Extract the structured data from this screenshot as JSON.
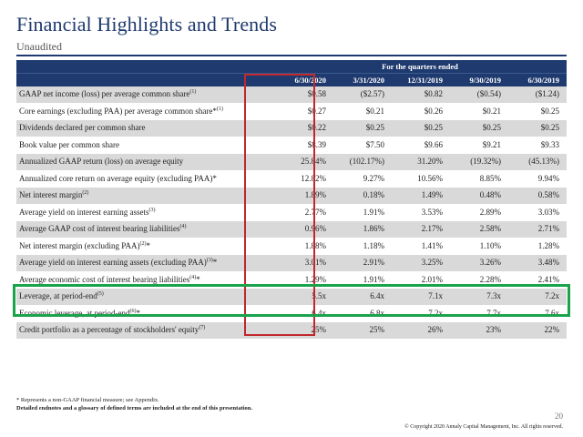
{
  "header": {
    "title": "Financial Highlights and Trends",
    "subtitle": "Unaudited"
  },
  "table": {
    "period_caption": "For the quarters ended",
    "columns": [
      "6/30/2020",
      "3/31/2020",
      "12/31/2019",
      "9/30/2019",
      "6/30/2019"
    ],
    "rows": [
      {
        "label": "GAAP net income (loss) per average common share",
        "note": "(1)",
        "values": [
          "$0.58",
          "($2.57)",
          "$0.82",
          "($0.54)",
          "($1.24)"
        ]
      },
      {
        "label": "Core earnings  (excluding PAA) per average common share*",
        "note": "(1)",
        "values": [
          "$0.27",
          "$0.21",
          "$0.26",
          "$0.21",
          "$0.25"
        ]
      },
      {
        "label": "Dividends declared per common share",
        "note": "",
        "values": [
          "$0.22",
          "$0.25",
          "$0.25",
          "$0.25",
          "$0.25"
        ]
      },
      {
        "label": "Book value per common share",
        "note": "",
        "values": [
          "$8.39",
          "$7.50",
          "$9.66",
          "$9.21",
          "$9.33"
        ]
      },
      {
        "label": "Annualized GAAP return (loss) on average equity",
        "note": "",
        "values": [
          "25.84%",
          "(102.17%)",
          "31.20%",
          "(19.32%)",
          "(45.13%)"
        ]
      },
      {
        "label": "Annualized core return on average equity (excluding PAA)*",
        "note": "",
        "values": [
          "12.82%",
          "9.27%",
          "10.56%",
          "8.85%",
          "9.94%"
        ]
      },
      {
        "label": "Net interest margin",
        "note": "(2)",
        "values": [
          "1.89%",
          "0.18%",
          "1.49%",
          "0.48%",
          "0.58%"
        ]
      },
      {
        "label": "Average yield on interest earning assets",
        "note": "(3)",
        "values": [
          "2.77%",
          "1.91%",
          "3.53%",
          "2.89%",
          "3.03%"
        ]
      },
      {
        "label": "Average GAAP cost of interest bearing liabilities",
        "note": "(4)",
        "values": [
          "0.96%",
          "1.86%",
          "2.17%",
          "2.58%",
          "2.71%"
        ]
      },
      {
        "label": "Net interest margin (excluding PAA)",
        "note": "(2)",
        "suffix": "*",
        "values": [
          "1.88%",
          "1.18%",
          "1.41%",
          "1.10%",
          "1.28%"
        ]
      },
      {
        "label": "Average yield on interest earning assets (excluding PAA)",
        "note": "(3)",
        "suffix": "*",
        "values": [
          "3.01%",
          "2.91%",
          "3.25%",
          "3.26%",
          "3.48%"
        ]
      },
      {
        "label": "Average economic cost of interest bearing liabilities",
        "note": "(4)",
        "suffix": "*",
        "values": [
          "1.29%",
          "1.91%",
          "2.01%",
          "2.28%",
          "2.41%"
        ]
      },
      {
        "label": "Leverage, at period-end",
        "note": "(5)",
        "values": [
          "5.5x",
          "6.4x",
          "7.1x",
          "7.3x",
          "7.2x"
        ]
      },
      {
        "label": "Economic leverage, at period-end",
        "note": "(6)",
        "suffix": "*",
        "values": [
          "6.4x",
          "6.8x",
          "7.2x",
          "7.7x",
          "7.6x"
        ]
      },
      {
        "label": "Credit portfolio as a percentage of stockholders' equity",
        "note": "(7)",
        "values": [
          "25%",
          "25%",
          "26%",
          "23%",
          "22%"
        ]
      }
    ]
  },
  "footer": {
    "note1": "*  Represents a non-GAAP financial measure; see Appendix.",
    "note2": "Detailed endnotes and a glossary of defined terms are included at the end of this presentation.",
    "page_number": "20",
    "copyright": "© Copyright 2020 Annaly Capital Management, Inc.  All rights reserved."
  },
  "highlights": {
    "column_box_color": "#c0282d",
    "leverage_box_color": "#1aa34a"
  }
}
